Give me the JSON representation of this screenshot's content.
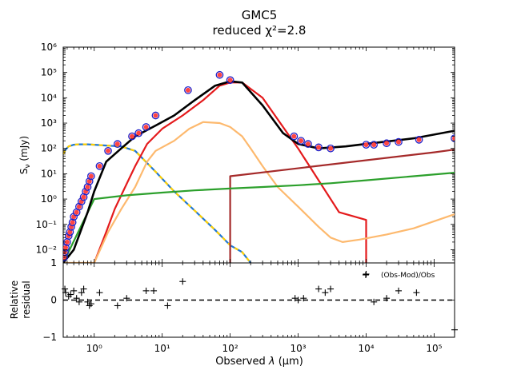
{
  "chart_data": {
    "type": "line",
    "title": "GMC5",
    "subtitle": "reduced χ²=2.8",
    "xlabel": "Observed λ (μm)",
    "x_scale": "log",
    "xlim": [
      0.35,
      200000
    ],
    "top_panel": {
      "ylabel": "S_ν (mJy)",
      "y_scale": "log",
      "ylim": [
        0.003,
        1000000
      ],
      "y_tick_labels": [
        "10⁻²",
        "10⁻¹",
        "10⁰",
        "10¹",
        "10²",
        "10³",
        "10⁴",
        "10⁵",
        "10⁶"
      ],
      "y_tick_values": [
        0.01,
        0.1,
        1,
        10,
        100,
        1000,
        10000,
        100000,
        1000000
      ],
      "y_floor_label": "1",
      "series": [
        {
          "role": "stellar-unattenuated",
          "color": "#1f77d4",
          "dash_color": "#ffd000",
          "x": [
            0.35,
            0.38,
            0.42,
            0.5,
            0.6,
            0.8,
            1.0,
            1.5,
            2.5,
            4,
            8,
            15,
            30,
            60,
            100,
            150,
            200
          ],
          "y": [
            60,
            90,
            120,
            140,
            145,
            145,
            140,
            130,
            120,
            80,
            12,
            2,
            0.35,
            0.06,
            0.015,
            0.008,
            0.003
          ]
        },
        {
          "role": "stellar-attenuated",
          "color": "#e41a1c",
          "x": [
            1.0,
            1.5,
            2,
            3,
            4,
            6,
            10,
            20,
            40,
            70,
            100,
            150,
            300,
            1000,
            4000,
            10000,
            10000
          ],
          "y": [
            0.003,
            0.05,
            0.4,
            4,
            20,
            150,
            600,
            2000,
            8000,
            30000,
            40000,
            40000,
            10000,
            100,
            0.3,
            0.15,
            0.003
          ]
        },
        {
          "role": "dust-emission",
          "color": "#fdb96e",
          "x": [
            0.35,
            1.0,
            1.6,
            2.5,
            4,
            6,
            8,
            15,
            25,
            40,
            70,
            100,
            150,
            200,
            300,
            500,
            1000,
            2000,
            3000,
            4500,
            8000,
            20000,
            50000,
            200000
          ],
          "y": [
            0.003,
            0.003,
            0.05,
            0.4,
            3,
            30,
            80,
            200,
            600,
            1100,
            1000,
            700,
            300,
            100,
            20,
            3,
            0.5,
            0.08,
            0.03,
            0.02,
            0.025,
            0.04,
            0.07,
            0.25
          ]
        },
        {
          "role": "agn-component",
          "color": "#a52a2a",
          "x": [
            100,
            100,
            100000,
            200000
          ],
          "y": [
            0.003,
            8,
            70,
            90
          ]
        },
        {
          "role": "nebular-emission",
          "color": "#2ca02c",
          "x": [
            0.35,
            1,
            3,
            10,
            30,
            100,
            300,
            1000,
            3000,
            10000,
            50000,
            200000
          ],
          "y": [
            0.003,
            1.0,
            1.4,
            1.8,
            2.2,
            2.6,
            3.0,
            3.5,
            4.2,
            5.5,
            8.0,
            11
          ]
        },
        {
          "role": "total-model",
          "color": "#000000",
          "x": [
            0.35,
            0.5,
            0.8,
            1.0,
            1.5,
            2.5,
            4,
            8,
            15,
            30,
            60,
            100,
            150,
            300,
            600,
            1000,
            2000,
            5000,
            10000,
            50000,
            200000
          ],
          "y": [
            0.003,
            0.01,
            0.3,
            2,
            30,
            100,
            300,
            800,
            2000,
            8000,
            30000,
            45000,
            40000,
            5000,
            400,
            150,
            100,
            120,
            150,
            250,
            500
          ]
        }
      ],
      "observed_points": {
        "x": [
          0.36,
          0.37,
          0.38,
          0.4,
          0.42,
          0.44,
          0.46,
          0.48,
          0.5,
          0.55,
          0.6,
          0.65,
          0.7,
          0.75,
          0.8,
          0.85,
          0.9,
          1.2,
          1.6,
          2.2,
          3.6,
          4.5,
          5.8,
          8,
          24,
          70,
          100,
          870,
          1100,
          1400,
          2000,
          3000,
          10000,
          13000,
          20000,
          30000,
          60000,
          200000
        ],
        "y": [
          0.005,
          0.008,
          0.012,
          0.02,
          0.035,
          0.05,
          0.08,
          0.12,
          0.2,
          0.3,
          0.5,
          0.8,
          1.2,
          2,
          3,
          5,
          8,
          20,
          80,
          150,
          300,
          400,
          700,
          2000,
          20000,
          80000,
          50000,
          300,
          200,
          150,
          110,
          100,
          140,
          140,
          160,
          180,
          220,
          250
        ]
      },
      "model_points_x": [
        0.36,
        0.37,
        0.38,
        0.4,
        0.42,
        0.44,
        0.46,
        0.48,
        0.5,
        0.55,
        0.6,
        0.65,
        0.7,
        0.75,
        0.8,
        0.85,
        0.9,
        1.2,
        1.6,
        2.2,
        3.6,
        4.5,
        5.8,
        8,
        24,
        70,
        100,
        870,
        1100,
        1400,
        2000,
        3000,
        10000,
        13000,
        20000,
        30000,
        60000,
        200000
      ]
    },
    "bottom_panel": {
      "ylabel": "Relative residual",
      "ylim": [
        -1,
        1
      ],
      "y_tick_labels": [
        "−1",
        "0",
        "1"
      ],
      "y_tick_values": [
        -1,
        0,
        1
      ],
      "legend": "(Obs-Mod)/Obs",
      "legend_position": "top-right",
      "zero_line": "dashed",
      "points": {
        "x": [
          0.37,
          0.38,
          0.42,
          0.45,
          0.5,
          0.55,
          0.6,
          0.65,
          0.7,
          0.8,
          0.85,
          0.9,
          1.2,
          2.2,
          3.0,
          5.8,
          7.5,
          12,
          20,
          900,
          1000,
          1200,
          2000,
          2500,
          3000,
          10000,
          13000,
          20000,
          30000,
          55000,
          200000
        ],
        "y": [
          0.3,
          0.2,
          0.1,
          0.15,
          0.25,
          0.05,
          -0.05,
          0.2,
          0.3,
          -0.05,
          -0.15,
          -0.1,
          0.2,
          -0.15,
          0.05,
          0.25,
          0.25,
          -0.15,
          0.5,
          0.05,
          0.0,
          0.05,
          0.3,
          0.2,
          0.3,
          0.7,
          -0.05,
          0.05,
          0.25,
          0.2,
          -0.8
        ]
      }
    },
    "x_tick_labels": [
      "10⁰",
      "10¹",
      "10²",
      "10³",
      "10⁴",
      "10⁵"
    ],
    "x_tick_values": [
      1,
      10,
      100,
      1000,
      10000,
      100000
    ],
    "colors": {
      "observed_marker": "#2020c8",
      "model_marker": "#ff4444",
      "axis": "#000000"
    }
  }
}
